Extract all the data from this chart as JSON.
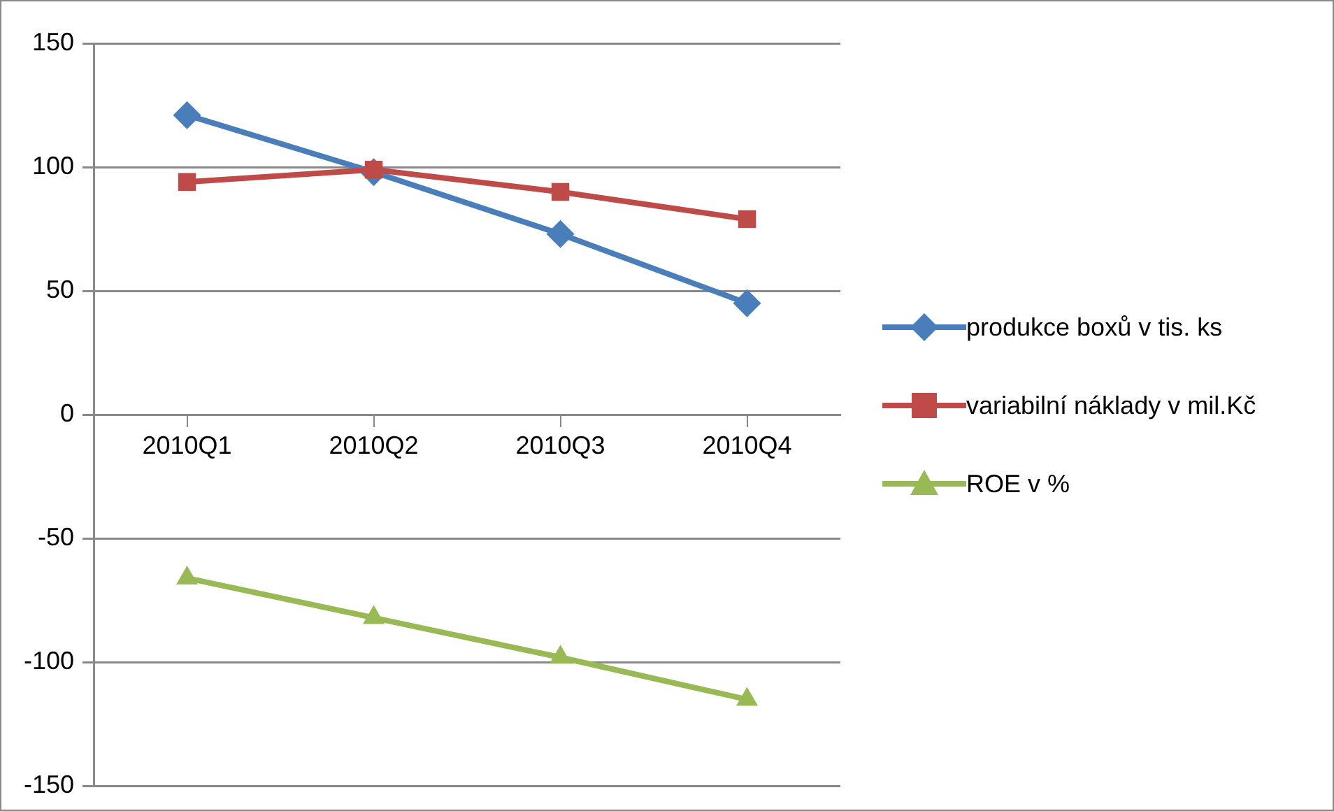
{
  "chart_data": {
    "type": "line",
    "categories": [
      "2010Q1",
      "2010Q2",
      "2010Q3",
      "2010Q4"
    ],
    "series": [
      {
        "name": "produkce boxů v tis. ks",
        "color": "#4a7ebb",
        "marker": "diamond",
        "values": [
          121,
          98,
          73,
          45
        ]
      },
      {
        "name": "variabilní náklady v mil.Kč",
        "color": "#be4b48",
        "marker": "square",
        "values": [
          94,
          99,
          90,
          79
        ]
      },
      {
        "name": "ROE v %",
        "color": "#98b954",
        "marker": "triangle",
        "values": [
          -66,
          -82,
          -98,
          -115
        ]
      }
    ],
    "ylim": [
      -150,
      150
    ],
    "yticks": [
      -150,
      -100,
      -50,
      0,
      50,
      100,
      150
    ],
    "grid": "y",
    "legend": "right",
    "line_style": "solid"
  }
}
